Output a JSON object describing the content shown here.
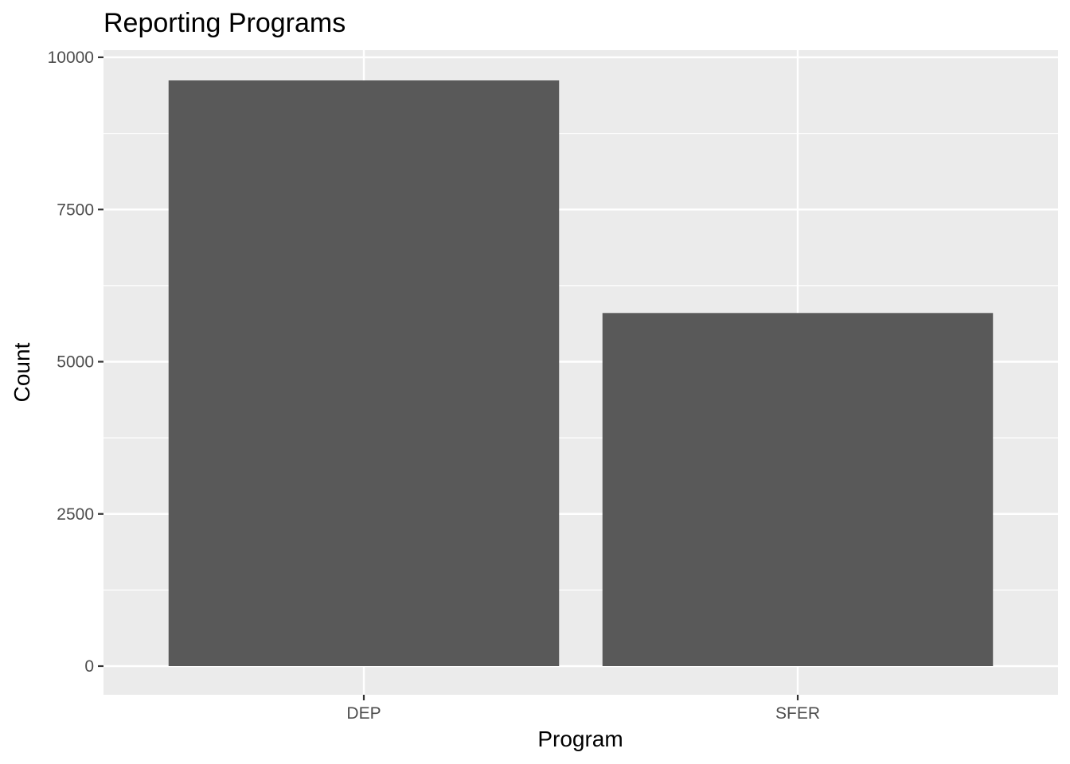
{
  "chart_data": {
    "type": "bar",
    "title": "Reporting Programs",
    "xlabel": "Program",
    "ylabel": "Count",
    "categories": [
      "DEP",
      "SFER"
    ],
    "values": [
      9620,
      5800
    ],
    "ylim": [
      0,
      10000
    ],
    "yticks": [
      0,
      2500,
      5000,
      7500,
      10000
    ],
    "ytick_labels": [
      "0",
      "2500",
      "5000",
      "7500",
      "10000"
    ],
    "grid": true,
    "legend": "none",
    "colors": {
      "bar": "#595959",
      "panel": "#ebebeb",
      "grid": "#ffffff",
      "tick_text": "#4d4d4d",
      "text": "#000000"
    }
  }
}
